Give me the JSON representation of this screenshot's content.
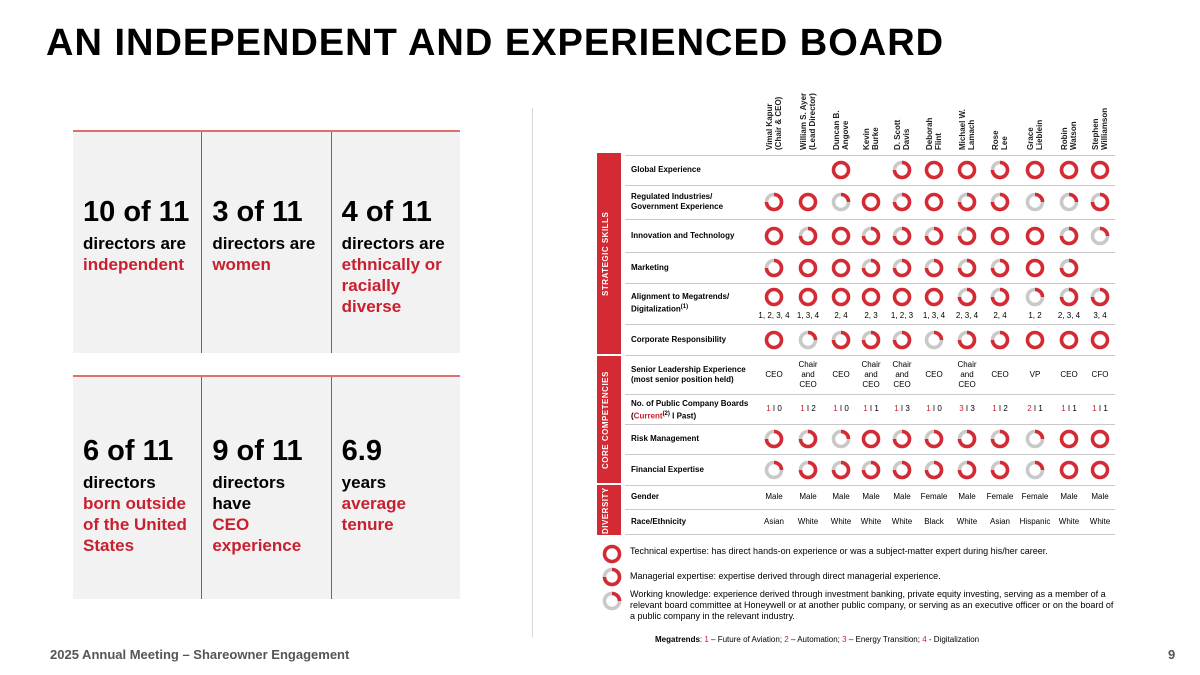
{
  "title": "AN INDEPENDENT AND EXPERIENCED BOARD",
  "stats_top": [
    {
      "number": "10 of 11",
      "desc": "directors are",
      "highlight": "independent"
    },
    {
      "number": "3 of 11",
      "desc": "directors are",
      "highlight": "women"
    },
    {
      "number": "4 of 11",
      "desc": "directors are",
      "highlight": "ethnically or racially diverse"
    }
  ],
  "stats_bottom": [
    {
      "number": "6 of 11",
      "desc": "directors",
      "highlight": "born outside of the United States"
    },
    {
      "number": "9 of 11",
      "desc": "directors have",
      "highlight": "CEO experience"
    },
    {
      "number": "6.9",
      "desc": "years",
      "highlight": "average tenure"
    }
  ],
  "directors": [
    [
      "Vimal Kapur",
      "(Chair & CEO)"
    ],
    [
      "William S. Ayer",
      "(Lead Director)"
    ],
    [
      "Duncan B.",
      "Angove"
    ],
    [
      "Kevin",
      "Burke"
    ],
    [
      "D. Scott",
      "Davis"
    ],
    [
      "Deborah",
      "Flint"
    ],
    [
      "Michael W.",
      "Lamach"
    ],
    [
      "Rose",
      "Lee"
    ],
    [
      "Grace",
      "Lieblein"
    ],
    [
      "Robin",
      "Watson"
    ],
    [
      "Stephen",
      "Williamson"
    ]
  ],
  "sections": {
    "strategic": "STRATEGIC SKILLS",
    "core": "CORE COMPETENCIES",
    "diversity": "DIVERSITY"
  },
  "rows": {
    "global": "Global Experience",
    "regulated_1": "Regulated Industries/",
    "regulated_2": "Government Experience",
    "innovation": "Innovation and Technology",
    "marketing": "Marketing",
    "alignment_1": "Alignment to Megatrends/",
    "alignment_2": "Digitalization",
    "alignment_sup": "(1)",
    "corporate": "Corporate Responsibility",
    "senior_1": "Senior Leadership Experience",
    "senior_2": "(most senior position held)",
    "boards_1": "No. of Public Company Boards",
    "boards_2a": "Current",
    "boards_sup": "(2)",
    "boards_2b": " I Past)",
    "risk": "Risk Management",
    "financial": "Financial Expertise",
    "gender": "Gender",
    "race": "Race/Ethnicity"
  },
  "skill_levels": {
    "global": [
      "",
      "",
      "T",
      "",
      "M",
      "T",
      "T",
      "M",
      "T",
      "T",
      "T"
    ],
    "regulated": [
      "M",
      "T",
      "W",
      "T",
      "M",
      "T",
      "M",
      "M",
      "W",
      "W",
      "M"
    ],
    "innovation": [
      "T",
      "M",
      "T",
      "M",
      "M",
      "M",
      "M",
      "T",
      "T",
      "M",
      "W"
    ],
    "marketing": [
      "M",
      "T",
      "T",
      "M",
      "M",
      "M",
      "M",
      "M",
      "T",
      "M",
      ""
    ],
    "alignment": [
      "T",
      "T",
      "T",
      "T",
      "T",
      "T",
      "M",
      "M",
      "W",
      "M",
      "M"
    ],
    "corporate": [
      "T",
      "W",
      "M",
      "M",
      "M",
      "W",
      "M",
      "M",
      "T",
      "T",
      "T"
    ],
    "risk": [
      "M",
      "M",
      "W",
      "T",
      "M",
      "M",
      "M",
      "M",
      "W",
      "T",
      "T"
    ],
    "financial": [
      "W",
      "M",
      "M",
      "M",
      "M",
      "M",
      "M",
      "M",
      "W",
      "T",
      "T"
    ]
  },
  "megatrend_codes": [
    "1, 2, 3, 4",
    "1, 3, 4",
    "2, 4",
    "2, 3",
    "1, 2, 3",
    "1, 3, 4",
    "2, 3, 4",
    "2, 4",
    "1, 2",
    "2, 3, 4",
    "3, 4"
  ],
  "senior_roles": [
    [
      "CEO"
    ],
    [
      "Chair",
      "and",
      "CEO"
    ],
    [
      "CEO"
    ],
    [
      "Chair",
      "and",
      "CEO"
    ],
    [
      "Chair",
      "and",
      "CEO"
    ],
    [
      "CEO"
    ],
    [
      "Chair",
      "and",
      "CEO"
    ],
    [
      "CEO"
    ],
    [
      "VP"
    ],
    [
      "CEO"
    ],
    [
      "CFO"
    ]
  ],
  "boards": [
    {
      "current": "1",
      "past": "0"
    },
    {
      "current": "1",
      "past": "2"
    },
    {
      "current": "1",
      "past": "0"
    },
    {
      "current": "1",
      "past": "1"
    },
    {
      "current": "1",
      "past": "3"
    },
    {
      "current": "1",
      "past": "0"
    },
    {
      "current": "3",
      "past": "3"
    },
    {
      "current": "1",
      "past": "2"
    },
    {
      "current": "2",
      "past": "1"
    },
    {
      "current": "1",
      "past": "1"
    },
    {
      "current": "1",
      "past": "1"
    }
  ],
  "board_separator": "I",
  "genders": [
    "Male",
    "Male",
    "Male",
    "Male",
    "Male",
    "Female",
    "Male",
    "Female",
    "Female",
    "Male",
    "Male"
  ],
  "ethnicities": [
    "Asian",
    "White",
    "White",
    "White",
    "White",
    "Black",
    "White",
    "Asian",
    "Hispanic",
    "White",
    "White"
  ],
  "legend": {
    "technical": "Technical expertise: has direct hands-on experience or was a subject-matter expert during his/her career.",
    "managerial": "Managerial expertise: expertise derived through direct managerial experience.",
    "working": "Working knowledge: experience derived through investment banking, private equity investing, serving as a member of a relevant board committee at Honeywell or at another public company, or serving as an executive officer or on the board of a public company in the relevant industry."
  },
  "megatrends": {
    "label": "Megatrends",
    "items": [
      {
        "num": "1",
        "text": "Future of Aviation"
      },
      {
        "num": "2",
        "text": "Automation"
      },
      {
        "num": "3",
        "text": "Energy Transition"
      },
      {
        "num": "4",
        "text": "Digitalization"
      }
    ]
  },
  "footer": "2025 Annual Meeting – Shareowner Engagement",
  "page_number": "9",
  "colors": {
    "accent": "#c8202f",
    "bar": "#d42a33",
    "panel": "#f2f2f2"
  }
}
